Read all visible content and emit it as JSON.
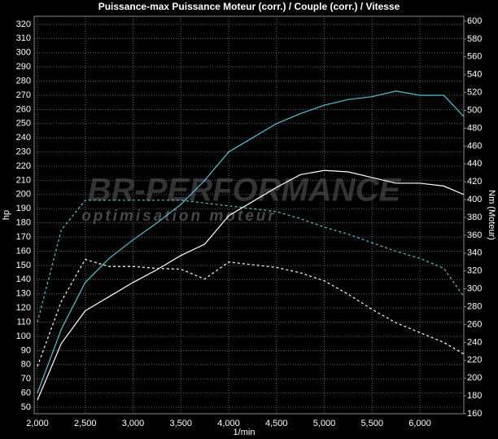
{
  "chart_data": {
    "type": "line",
    "title": "Puissance-max Puissance Moteur (corr.) / Couple (corr.) / Vitesse",
    "ylabel": "hp",
    "y2label": "Nm (Moteur)",
    "xlabel": "1/min",
    "watermark": [
      "BR-PERFORMANCE",
      "optimisation moteur"
    ],
    "grid": true,
    "x": [
      2000,
      2250,
      2500,
      2750,
      3000,
      3250,
      3500,
      3750,
      4000,
      4250,
      4500,
      4750,
      5000,
      5250,
      5500,
      5750,
      6000,
      6250,
      6460
    ],
    "xlim": [
      1966,
      6460
    ],
    "xticks": [
      {
        "value": 2000,
        "label": "2,000"
      },
      {
        "value": 2500,
        "label": "2,500"
      },
      {
        "value": 3000,
        "label": "3,000"
      },
      {
        "value": 3500,
        "label": "3,500"
      },
      {
        "value": 4000,
        "label": "4,000"
      },
      {
        "value": 4500,
        "label": "4,500"
      },
      {
        "value": 5000,
        "label": "5,000"
      },
      {
        "value": 5500,
        "label": "5,500"
      },
      {
        "value": 6000,
        "label": "6,000"
      }
    ],
    "ylim": [
      45.4,
      325.7
    ],
    "yticks": [
      50,
      60,
      70,
      80,
      90,
      100,
      110,
      120,
      130,
      140,
      150,
      160,
      170,
      180,
      190,
      200,
      210,
      220,
      230,
      240,
      250,
      260,
      270,
      280,
      290,
      300,
      310,
      320
    ],
    "y2lim": [
      160,
      605.5
    ],
    "y2ticks": [
      160,
      180,
      200,
      220,
      240,
      260,
      280,
      300,
      320,
      340,
      360,
      380,
      400,
      420,
      440,
      460,
      480,
      500,
      520,
      540,
      560,
      580,
      600
    ],
    "series": [
      {
        "color": "#4fc6d6",
        "dash": false,
        "values": [
          60,
          105,
          138,
          155,
          168,
          180,
          193,
          210,
          230,
          240,
          250,
          257,
          263,
          267,
          269,
          273,
          270,
          270,
          255
        ]
      },
      {
        "color": "#4fc6d6",
        "dash": true,
        "values": [
          110,
          175,
          196,
          196,
          196,
          196,
          196,
          194,
          192,
          190,
          188,
          183,
          177,
          172,
          166,
          160,
          155,
          148,
          128
        ]
      },
      {
        "color": "#ffffff",
        "dash": false,
        "values": [
          55,
          95,
          118,
          128,
          138,
          147,
          157,
          165,
          185,
          195,
          205,
          214,
          217,
          216,
          212,
          208,
          208,
          206,
          200
        ]
      },
      {
        "color": "#ffffff",
        "dash": true,
        "axis": "y2",
        "values": [
          213,
          286,
          333,
          325,
          325,
          323,
          322,
          311,
          330,
          327,
          324,
          318,
          309,
          294,
          277,
          262,
          251,
          240,
          227
        ]
      }
    ]
  }
}
